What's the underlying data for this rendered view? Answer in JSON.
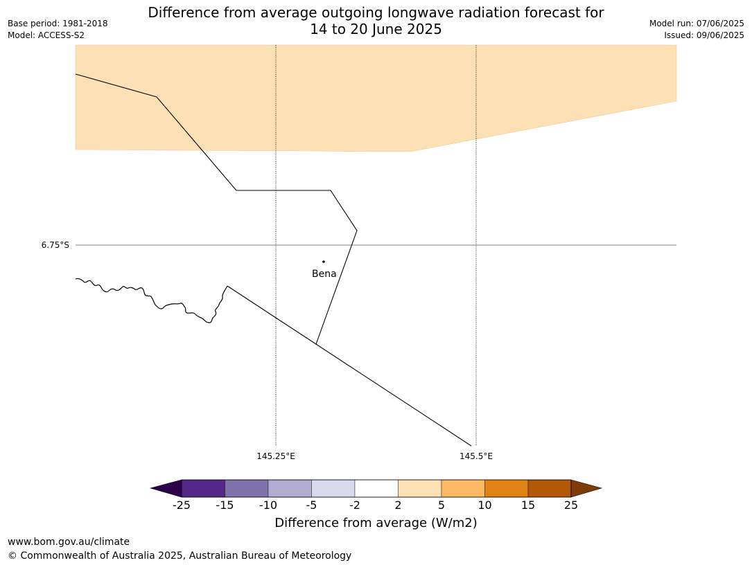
{
  "header": {
    "title_line1": "Difference from average outgoing longwave radiation forecast for",
    "title_line2": "14 to 20 June 2025",
    "base_period": "Base period: 1981-2018",
    "model": "Model: ACCESS-S2",
    "model_run": "Model run: 07/06/2025",
    "issued": "Issued: 09/06/2025"
  },
  "map": {
    "lat_labels": [
      "6.75°S"
    ],
    "lon_labels": [
      "145.25°E",
      "145.5°E"
    ],
    "places": [
      {
        "name": "Bena"
      }
    ],
    "shaded_category": "2 to 5",
    "shaded_color": "#fde0b6"
  },
  "colorbar": {
    "label": "Difference from average (W/m2)",
    "ticks": [
      "-25",
      "-15",
      "-10",
      "-5",
      "-2",
      "2",
      "5",
      "10",
      "15",
      "25"
    ],
    "colors": [
      "#2d004b",
      "#542788",
      "#8073ac",
      "#b2abd2",
      "#d8daeb",
      "#ffffff",
      "#fee0b6",
      "#fdb863",
      "#e08214",
      "#b35806",
      "#7f3b08"
    ]
  },
  "footer": {
    "url": "www.bom.gov.au/climate",
    "copyright": "© Commonwealth of Australia 2025, Australian Bureau of Meteorology"
  }
}
